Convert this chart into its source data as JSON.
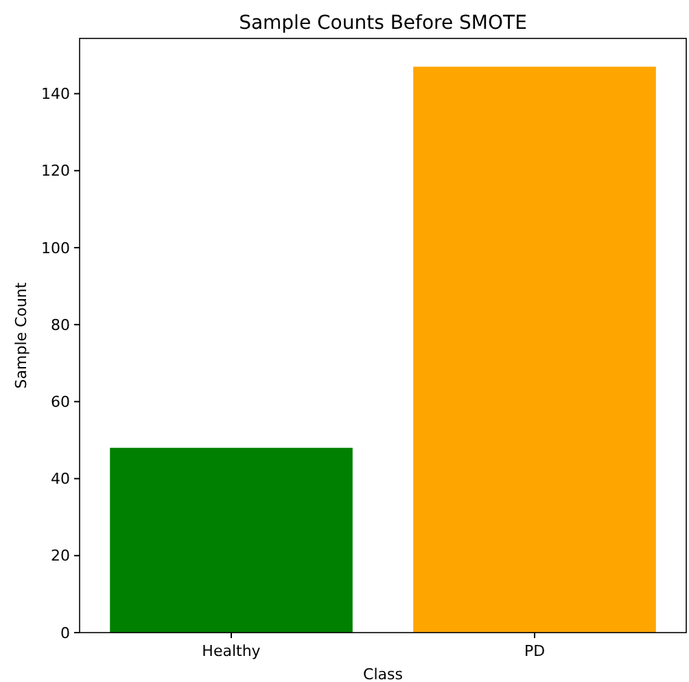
{
  "chart_data": {
    "type": "bar",
    "title": "Sample Counts Before SMOTE",
    "xlabel": "Class",
    "ylabel": "Sample Count",
    "categories": [
      "Healthy",
      "PD"
    ],
    "values": [
      48,
      147
    ],
    "colors": [
      "#008000",
      "#ffa500"
    ],
    "ylim": [
      0,
      154.35
    ],
    "yticks": [
      0,
      20,
      40,
      60,
      80,
      100,
      120,
      140
    ],
    "grid": false
  }
}
